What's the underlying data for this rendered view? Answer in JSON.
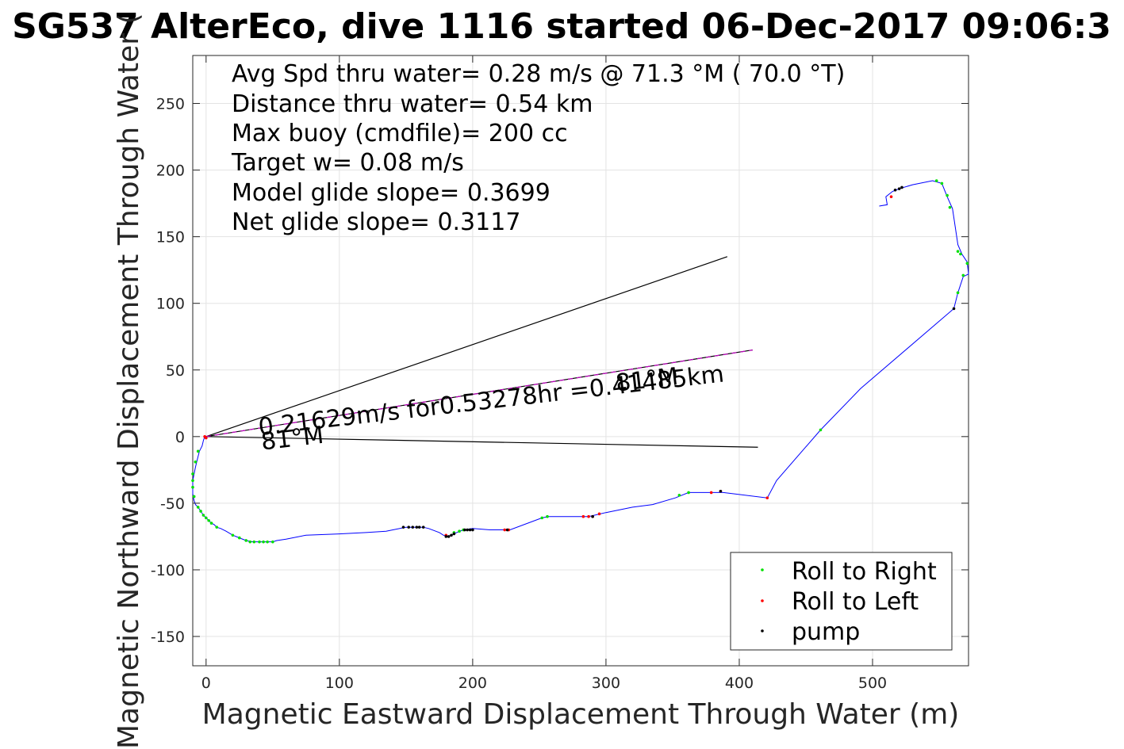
{
  "chart_data": {
    "type": "line",
    "title": "SG537 AlterEco, dive 1116 started 06-Dec-2017 09:06:3",
    "xlabel": "Magnetic Eastward Displacement Through Water (m)",
    "ylabel": "Magnetic Northward Displacement Through Water (",
    "xlim": [
      -10,
      572
    ],
    "ylim": [
      -172,
      286
    ],
    "xticks": [
      0,
      100,
      200,
      300,
      400,
      500
    ],
    "yticks": [
      -150,
      -100,
      -50,
      0,
      50,
      100,
      150,
      200,
      250
    ],
    "xtick_labels": [
      "0",
      "100",
      "200",
      "300",
      "400",
      "500"
    ],
    "ytick_labels": [
      "-150",
      "-100",
      "-50",
      "0",
      "50",
      "100",
      "150",
      "200",
      "250"
    ],
    "grid": true,
    "legend_position": "bottom-right",
    "info_lines": [
      "Avg Spd thru water=  0.28 m/s @  71.3 °M ( 70.0 °T)",
      "Distance thru water=  0.54 km",
      "Max buoy (cmdfile)= 200 cc",
      "Target w= 0.08 m/s",
      "Model glide slope= 0.3699",
      "Net glide slope= 0.3117"
    ],
    "annotations": [
      {
        "text": "0.21629m/s for0.53278hr =0.41485km",
        "x": 40,
        "y": 1,
        "rotation_deg": -6.6
      },
      {
        "text": "81°M",
        "x": 42,
        "y": -10,
        "rotation_deg": -6.6
      },
      {
        "text": "81°M",
        "x": 308,
        "y": 34,
        "rotation_deg": -6.6
      }
    ],
    "series": [
      {
        "name": "track",
        "color": "#0000ff",
        "points": [
          [
            -1,
            0
          ],
          [
            -2,
            -3
          ],
          [
            -3,
            -7
          ],
          [
            -5,
            -11
          ],
          [
            -6,
            -15
          ],
          [
            -7,
            -19
          ],
          [
            -8,
            -23
          ],
          [
            -9,
            -28
          ],
          [
            -10,
            -33
          ],
          [
            -10,
            -38
          ],
          [
            -10,
            -43
          ],
          [
            -9,
            -48
          ],
          [
            -8,
            -51
          ],
          [
            -6,
            -53
          ],
          [
            -4,
            -56
          ],
          [
            -2,
            -59
          ],
          [
            0,
            -61
          ],
          [
            2,
            -63
          ],
          [
            4,
            -65
          ],
          [
            6,
            -66
          ],
          [
            8,
            -68
          ],
          [
            11,
            -69
          ],
          [
            15,
            -71
          ],
          [
            20,
            -74
          ],
          [
            25,
            -76
          ],
          [
            30,
            -78
          ],
          [
            35,
            -79
          ],
          [
            40,
            -79
          ],
          [
            45,
            -79
          ],
          [
            50,
            -79
          ],
          [
            53,
            -78
          ],
          [
            60,
            -77
          ],
          [
            75,
            -74
          ],
          [
            100,
            -73
          ],
          [
            120,
            -72
          ],
          [
            135,
            -71
          ],
          [
            150,
            -68
          ],
          [
            158,
            -68
          ],
          [
            163,
            -68
          ],
          [
            167,
            -69
          ],
          [
            175,
            -72
          ],
          [
            178,
            -74
          ],
          [
            181,
            -75
          ],
          [
            184,
            -74
          ],
          [
            188,
            -72
          ],
          [
            193,
            -70
          ],
          [
            200,
            -69
          ],
          [
            213,
            -70
          ],
          [
            228,
            -70
          ],
          [
            252,
            -61
          ],
          [
            257,
            -60
          ],
          [
            275,
            -60
          ],
          [
            287,
            -60
          ],
          [
            300,
            -57
          ],
          [
            320,
            -53
          ],
          [
            335,
            -51
          ],
          [
            352,
            -46
          ],
          [
            362,
            -42
          ],
          [
            380,
            -42
          ],
          [
            388,
            -42
          ],
          [
            421,
            -46
          ],
          [
            428,
            -33
          ],
          [
            461,
            5
          ],
          [
            491,
            36
          ],
          [
            561,
            96
          ],
          [
            564,
            108
          ],
          [
            568,
            120
          ],
          [
            572,
            122
          ],
          [
            571,
            131
          ],
          [
            567,
            137
          ],
          [
            564,
            144
          ],
          [
            560,
            171
          ],
          [
            556,
            180
          ],
          [
            552,
            190
          ],
          [
            545,
            192
          ],
          [
            530,
            189
          ],
          [
            520,
            186
          ],
          [
            515,
            184
          ],
          [
            510,
            180
          ],
          [
            511,
            174
          ],
          [
            505,
            173
          ]
        ]
      },
      {
        "name": "model_glide_dashed",
        "color": "#c000c0",
        "points": [
          [
            0,
            0
          ],
          [
            410,
            65
          ]
        ]
      }
    ],
    "reference_lines": [
      {
        "name": "upper_cone",
        "points": [
          [
            0,
            0
          ],
          [
            391,
            135
          ]
        ]
      },
      {
        "name": "mid_line",
        "points": [
          [
            0,
            0
          ],
          [
            410,
            65
          ]
        ]
      },
      {
        "name": "lower_line",
        "points": [
          [
            0,
            0
          ],
          [
            414,
            -8
          ]
        ]
      }
    ],
    "markers": {
      "roll_right": {
        "label": "Roll to Right",
        "color": "#00e000",
        "points": [
          [
            -6,
            -11
          ],
          [
            -8,
            -19
          ],
          [
            -10,
            -28
          ],
          [
            -10,
            -33
          ],
          [
            -10,
            -38
          ],
          [
            -9,
            -45
          ],
          [
            -6,
            -53
          ],
          [
            -4,
            -56
          ],
          [
            -2,
            -59
          ],
          [
            0,
            -61
          ],
          [
            2,
            -63
          ],
          [
            4,
            -65
          ],
          [
            8,
            -68
          ],
          [
            20,
            -74
          ],
          [
            25,
            -76
          ],
          [
            30,
            -78
          ],
          [
            33,
            -79
          ],
          [
            36,
            -79
          ],
          [
            40,
            -79
          ],
          [
            43,
            -79
          ],
          [
            46,
            -79
          ],
          [
            50,
            -79
          ],
          [
            186,
            -72
          ],
          [
            190,
            -71
          ],
          [
            193,
            -70
          ],
          [
            252,
            -61
          ],
          [
            256,
            -60
          ],
          [
            355,
            -44
          ],
          [
            362,
            -42
          ],
          [
            461,
            5
          ],
          [
            548,
            192
          ],
          [
            552,
            190
          ],
          [
            556,
            181
          ],
          [
            558,
            172
          ],
          [
            564,
            139
          ],
          [
            566,
            137
          ],
          [
            568,
            121
          ],
          [
            571,
            130
          ],
          [
            564,
            108
          ]
        ]
      },
      "roll_left": {
        "label": "Roll to Left",
        "color": "#ff0000",
        "points": [
          [
            -1,
            0
          ],
          [
            0,
            -1
          ],
          [
            180,
            -74
          ],
          [
            227,
            -70
          ],
          [
            224,
            -70
          ],
          [
            283,
            -60
          ],
          [
            287,
            -60
          ],
          [
            290,
            -60
          ],
          [
            295,
            -58
          ],
          [
            379,
            -42
          ],
          [
            386,
            -41
          ],
          [
            421,
            -46
          ],
          [
            514,
            180
          ]
        ]
      },
      "pump": {
        "label": "pump",
        "color": "#000000",
        "points": [
          [
            148,
            -68
          ],
          [
            152,
            -68
          ],
          [
            155,
            -68
          ],
          [
            158,
            -68
          ],
          [
            160,
            -68
          ],
          [
            163,
            -68
          ],
          [
            180,
            -75
          ],
          [
            182,
            -75
          ],
          [
            184,
            -74
          ],
          [
            186,
            -73
          ],
          [
            194,
            -70
          ],
          [
            196,
            -70
          ],
          [
            198,
            -70
          ],
          [
            200,
            -70
          ],
          [
            226,
            -70
          ],
          [
            290,
            -60
          ],
          [
            386,
            -41
          ],
          [
            517,
            185
          ],
          [
            520,
            186
          ],
          [
            522,
            187
          ],
          [
            561,
            96
          ]
        ]
      }
    },
    "legend": [
      "Roll to Right",
      "Roll to Left",
      "pump"
    ]
  }
}
